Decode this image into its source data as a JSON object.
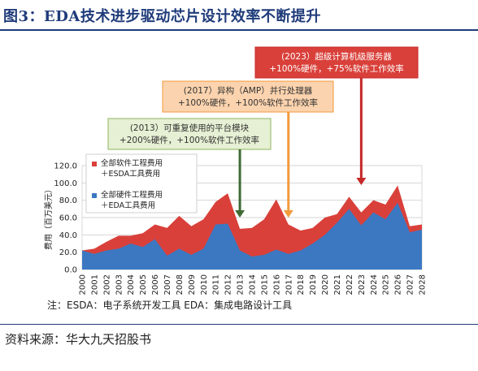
{
  "figure": {
    "title": "图3：EDA技术进步驱动芯片设计效率不断提升",
    "source": "资料来源：华大九天招股书"
  },
  "chart_data": {
    "type": "area",
    "ylabel": "费用（百万美元）",
    "ylim": [
      0,
      120
    ],
    "yticks": [
      "0.0",
      "20.0",
      "40.0",
      "60.0",
      "80.0",
      "100.0",
      "120.0"
    ],
    "x": [
      "2000",
      "2001",
      "2002",
      "2003",
      "2004",
      "2005",
      "2006",
      "2007",
      "2008",
      "2009",
      "2010",
      "2011",
      "2012",
      "2013",
      "2014",
      "2015",
      "2016",
      "2017",
      "2018",
      "2019",
      "2020",
      "2021",
      "2022",
      "2023",
      "2024",
      "2025",
      "2026",
      "2027",
      "2028"
    ],
    "grid": true,
    "legend_position": "top-left",
    "series": [
      {
        "name": "全部软件工程费用＋ESDA工具费用",
        "color": "#d9403a",
        "values": [
          22,
          24,
          32,
          39,
          39,
          42,
          52,
          48,
          62,
          50,
          58,
          78,
          88,
          47,
          48,
          58,
          81,
          52,
          45,
          48,
          60,
          64,
          84,
          66,
          80,
          75,
          97,
          50,
          52
        ]
      },
      {
        "name": "全部硬件工程费用＋EDA工具费用",
        "color": "#3c78c2",
        "values": [
          22,
          18,
          22,
          24,
          30,
          26,
          35,
          16,
          24,
          17,
          24,
          52,
          53,
          22,
          15,
          17,
          23,
          18,
          22,
          30,
          40,
          54,
          70,
          51,
          66,
          58,
          77,
          43,
          46
        ]
      }
    ],
    "annotations": [
      {
        "line1": "(2013）可重复使用的平台模块",
        "line2": "+200%硬件，+100%软件工作效率",
        "x": "2013",
        "color": "#3f6a35",
        "fill": "#e6f0d4",
        "border": "#8db55e"
      },
      {
        "line1": "(2017）异构（AMP）并行处理器",
        "line2": "+100%硬件，+100%软件工作效率",
        "x": "2017",
        "color": "#f39a3c",
        "fill": "#fbd3ae",
        "border": "#f39a3c"
      },
      {
        "line1": "(2023）超级计算机级服务器",
        "line2": "+100%硬件，+75%软件工作效率",
        "x": "2023",
        "color": "#c62828",
        "fill": "#d9403a",
        "border": "#c62828"
      }
    ],
    "note": "注：ESDA：电子系统开发工具        EDA：集成电路设计工具"
  }
}
